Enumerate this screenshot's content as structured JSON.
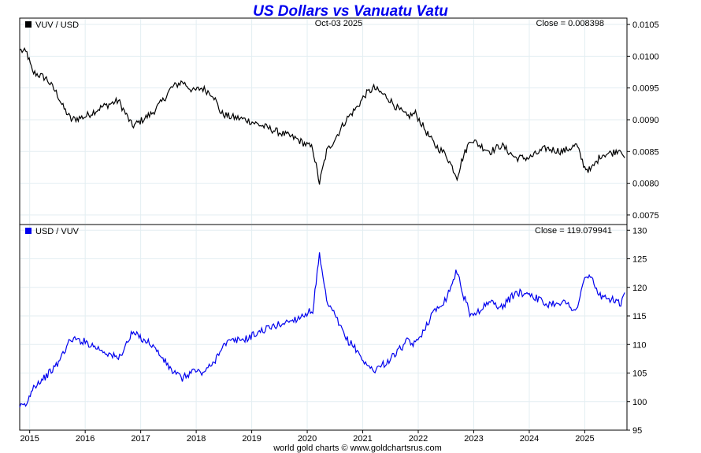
{
  "chart_data": {
    "type": "line",
    "title": "US Dollars vs Vanuatu Vatu",
    "date_label": "Oct-03  2025",
    "footer": "world gold charts © www.goldchartsrus.com",
    "x_ticks": [
      "2015",
      "2016",
      "2017",
      "2018",
      "2019",
      "2020",
      "2021",
      "2022",
      "2023",
      "2024",
      "2025"
    ],
    "xlim": [
      2014.82,
      2025.76
    ],
    "grid": true,
    "panels": [
      {
        "legend": "VUV / USD",
        "legend_color": "#000000",
        "close_label": "Close = 0.008398",
        "line_color": "#000000",
        "ylim": [
          0.00735,
          0.0106
        ],
        "y_ticks": [
          "0.0075",
          "0.0080",
          "0.0085",
          "0.0090",
          "0.0095",
          "0.0100",
          "0.0105"
        ],
        "x": [
          2014.82,
          2014.95,
          2015.05,
          2015.3,
          2015.5,
          2015.6,
          2015.75,
          2016.0,
          2016.3,
          2016.6,
          2016.85,
          2016.95,
          2017.2,
          2017.4,
          2017.55,
          2017.75,
          2017.95,
          2018.1,
          2018.3,
          2018.45,
          2018.6,
          2018.9,
          2019.2,
          2019.5,
          2019.8,
          2020.1,
          2020.22,
          2020.35,
          2020.5,
          2020.7,
          2020.9,
          2021.05,
          2021.2,
          2021.45,
          2021.6,
          2021.8,
          2021.95,
          2022.15,
          2022.3,
          2022.5,
          2022.7,
          2022.8,
          2022.95,
          2023.1,
          2023.3,
          2023.5,
          2023.75,
          2024.0,
          2024.3,
          2024.6,
          2024.85,
          2025.0,
          2025.1,
          2025.3,
          2025.5,
          2025.65,
          2025.72
        ],
        "y": [
          0.0101,
          0.01005,
          0.00975,
          0.00965,
          0.0094,
          0.0092,
          0.009,
          0.00905,
          0.0092,
          0.0093,
          0.0089,
          0.00895,
          0.0091,
          0.0093,
          0.0095,
          0.0096,
          0.00945,
          0.0095,
          0.0094,
          0.0091,
          0.00905,
          0.009,
          0.0089,
          0.0088,
          0.0087,
          0.00855,
          0.008,
          0.0085,
          0.0087,
          0.009,
          0.0092,
          0.0094,
          0.0095,
          0.00935,
          0.0092,
          0.00905,
          0.0091,
          0.0088,
          0.0086,
          0.00845,
          0.0081,
          0.0084,
          0.0087,
          0.0086,
          0.0085,
          0.0086,
          0.0084,
          0.0084,
          0.00855,
          0.0085,
          0.0086,
          0.00825,
          0.0082,
          0.00845,
          0.00848,
          0.00855,
          0.0084
        ]
      },
      {
        "legend": "USD / VUV",
        "legend_color": "#0000ee",
        "close_label": "Close = 119.079941",
        "line_color": "#0000ee",
        "ylim": [
          95,
          131
        ],
        "y_ticks": [
          "95",
          "100",
          "105",
          "110",
          "115",
          "120",
          "125",
          "130"
        ],
        "x": [
          2014.82,
          2014.95,
          2015.05,
          2015.3,
          2015.5,
          2015.6,
          2015.75,
          2016.0,
          2016.3,
          2016.6,
          2016.85,
          2016.95,
          2017.2,
          2017.4,
          2017.55,
          2017.75,
          2017.95,
          2018.1,
          2018.3,
          2018.45,
          2018.6,
          2018.9,
          2019.2,
          2019.5,
          2019.8,
          2020.1,
          2020.22,
          2020.35,
          2020.5,
          2020.7,
          2020.9,
          2021.05,
          2021.2,
          2021.45,
          2021.6,
          2021.8,
          2021.95,
          2022.15,
          2022.3,
          2022.5,
          2022.7,
          2022.8,
          2022.95,
          2023.1,
          2023.3,
          2023.5,
          2023.75,
          2024.0,
          2024.3,
          2024.6,
          2024.85,
          2025.0,
          2025.1,
          2025.3,
          2025.5,
          2025.65,
          2025.72
        ],
        "y": [
          99.0,
          99.5,
          102.5,
          104.5,
          106.5,
          108.5,
          111.0,
          110.5,
          109.0,
          107.5,
          112.0,
          111.5,
          110.0,
          107.5,
          105.5,
          104.0,
          105.5,
          105.0,
          106.5,
          109.5,
          110.5,
          111.0,
          112.5,
          113.5,
          114.5,
          116.0,
          125.5,
          117.5,
          115.0,
          111.0,
          109.0,
          106.5,
          105.5,
          107.0,
          108.5,
          110.5,
          110.0,
          113.5,
          116.0,
          118.0,
          123.0,
          119.0,
          115.0,
          116.0,
          117.5,
          116.5,
          119.0,
          119.0,
          117.0,
          117.5,
          116.0,
          121.5,
          122.0,
          118.0,
          118.0,
          117.0,
          119.08
        ]
      }
    ]
  }
}
